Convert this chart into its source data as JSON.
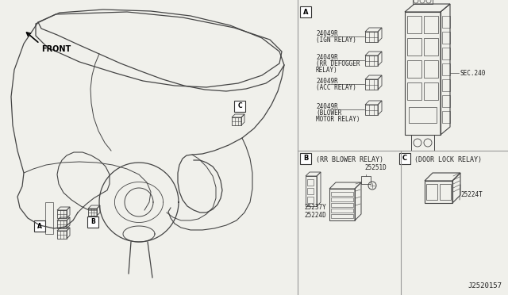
{
  "bg_color": "#f0f0eb",
  "diagram_id": "J2520157",
  "section_a": {
    "label": "A",
    "parts": [
      {
        "part_num": "24049R",
        "desc": "(IGN RELAY)"
      },
      {
        "part_num": "24049R",
        "desc": "(RR DEFOGGER\nRELAY)"
      },
      {
        "part_num": "24049R",
        "desc": "(ACC RELAY)"
      },
      {
        "part_num": "24049R",
        "desc": "(BLOWER\nMOTOR RELAY)"
      }
    ],
    "sec_ref": "SEC.240"
  },
  "section_b": {
    "label": "B",
    "title": "(RR BLOWER RELAY)",
    "parts": [
      {
        "part_num": "25251D"
      },
      {
        "part_num": "25237Y"
      },
      {
        "part_num": "25224D"
      }
    ]
  },
  "section_c": {
    "label": "C",
    "title": "(DOOR LOCK RELAY)",
    "parts": [
      {
        "part_num": "25224T"
      }
    ]
  },
  "front_label": "FRONT",
  "lc": "#444444",
  "tc": "#222222"
}
